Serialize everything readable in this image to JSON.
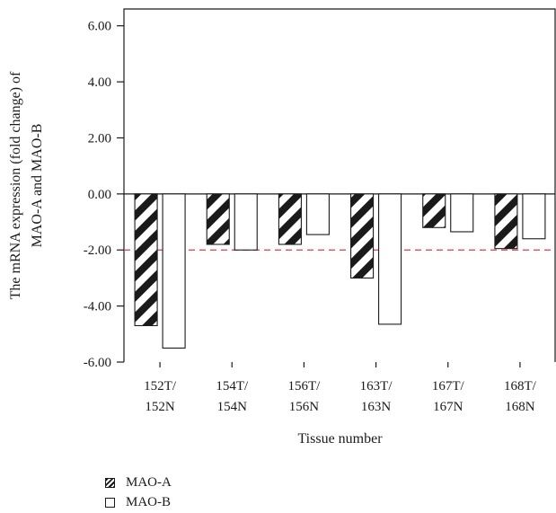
{
  "chart_data": {
    "type": "bar",
    "categories": [
      [
        "152T/",
        "152N"
      ],
      [
        "154T/",
        "154N"
      ],
      [
        "156T/",
        "156N"
      ],
      [
        "163T/",
        "163N"
      ],
      [
        "167T/",
        "167N"
      ],
      [
        "168T/",
        "168N"
      ]
    ],
    "series": [
      {
        "name": "MAO-A",
        "values": [
          -4.7,
          -1.8,
          -1.8,
          -3.0,
          -1.2,
          -1.95
        ],
        "pattern": "hatched"
      },
      {
        "name": "MAO-B",
        "values": [
          -5.5,
          -2.0,
          -1.45,
          -4.65,
          -1.35,
          -1.6
        ],
        "pattern": "open"
      }
    ],
    "ylabel": [
      "The mRNA expression (fold change) of",
      "MAO-A and MAO-B"
    ],
    "xlabel": "Tissue number",
    "ylim": [
      -6,
      6.6
    ],
    "yticks": [
      "6.00",
      "4.00",
      "2.00",
      "0.00",
      "-2.00",
      "-4.00",
      "-6.00"
    ],
    "ytick_values": [
      6,
      4,
      2,
      0,
      -2,
      -4,
      -6
    ],
    "reference_line": {
      "y": -2,
      "color": "#e0394a",
      "style": "dashed"
    },
    "legend_position": "bottom-left"
  }
}
